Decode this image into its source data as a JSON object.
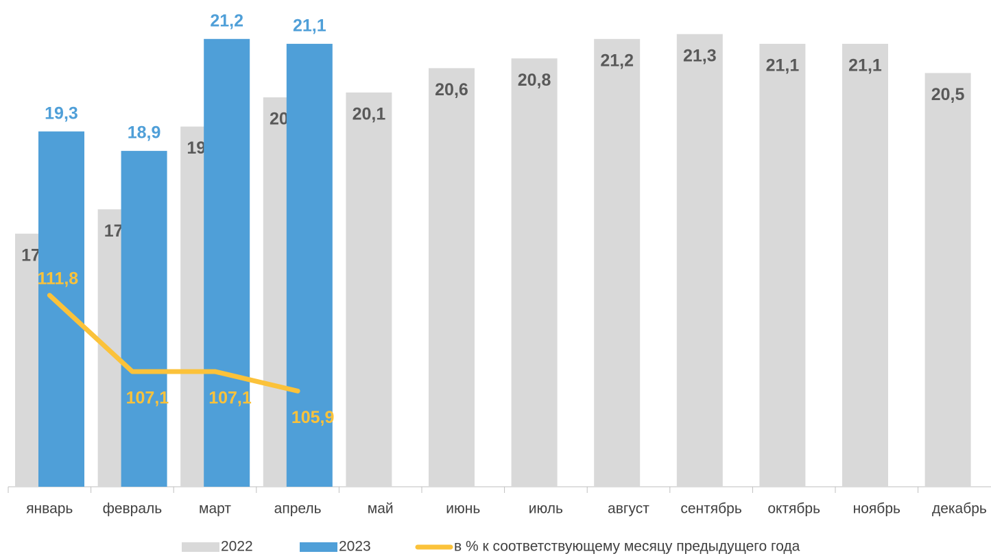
{
  "chart_data": {
    "type": "bar",
    "categories": [
      "январь",
      "февраль",
      "март",
      "апрель",
      "май",
      "июнь",
      "июль",
      "август",
      "сентябрь",
      "октябрь",
      "ноябрь",
      "декабрь"
    ],
    "series": [
      {
        "name": "2022",
        "color": "#d9d9d9",
        "label_color": "#595959",
        "values": [
          17.2,
          17.7,
          19.4,
          20.0,
          20.1,
          20.6,
          20.8,
          21.2,
          21.3,
          21.1,
          21.1,
          20.5
        ],
        "value_labels": [
          "17,2",
          "17,7",
          "19,4",
          "20,0",
          "20,1",
          "20,6",
          "20,8",
          "21,2",
          "21,3",
          "21,1",
          "21,1",
          "20,5"
        ]
      },
      {
        "name": "2023",
        "color": "#4f9fd8",
        "label_color": "#4f9fd8",
        "values": [
          19.3,
          18.9,
          21.2,
          21.1,
          null,
          null,
          null,
          null,
          null,
          null,
          null,
          null
        ],
        "value_labels": [
          "19,3",
          "18,9",
          "21,2",
          "21,1",
          null,
          null,
          null,
          null,
          null,
          null,
          null,
          null
        ]
      },
      {
        "name": "в % к соответствующему месяцу предыдущего года",
        "type": "line",
        "axis": "y2",
        "color": "#fbc23a",
        "label_color": "#fbc23a",
        "values": [
          111.8,
          107.1,
          107.1,
          105.9,
          null,
          null,
          null,
          null,
          null,
          null,
          null,
          null
        ],
        "value_labels": [
          "111,8",
          "107,1",
          "107,1",
          "105,9",
          null,
          null,
          null,
          null,
          null,
          null,
          null,
          null
        ]
      }
    ],
    "ylim": [
      12,
      22
    ],
    "y2lim": [
      100,
      130
    ],
    "legend": "bottom"
  }
}
